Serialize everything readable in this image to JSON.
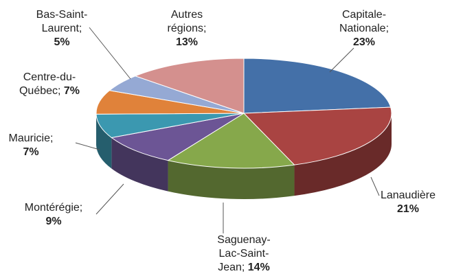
{
  "chart_data": {
    "type": "pie3d",
    "categories": [
      "Capitale-Nationale;",
      "Lanaudière",
      "Saguenay-Lac-Saint-Jean;",
      "Montérégie;",
      "Mauricie;",
      "Centre-du-Québec;",
      "Bas-Saint-Laurent;",
      "Autres régions;"
    ],
    "values": [
      23,
      21,
      14,
      9,
      7,
      7,
      5,
      13
    ],
    "value_labels": [
      "23%",
      "21%",
      "14%",
      "9%",
      "7%",
      "7%",
      "5%",
      "13%"
    ],
    "colors": [
      "#4470a8",
      "#a94442",
      "#86a84b",
      "#6c5595",
      "#3b98b0",
      "#e0823a",
      "#95a9d4",
      "#d4908e"
    ]
  }
}
